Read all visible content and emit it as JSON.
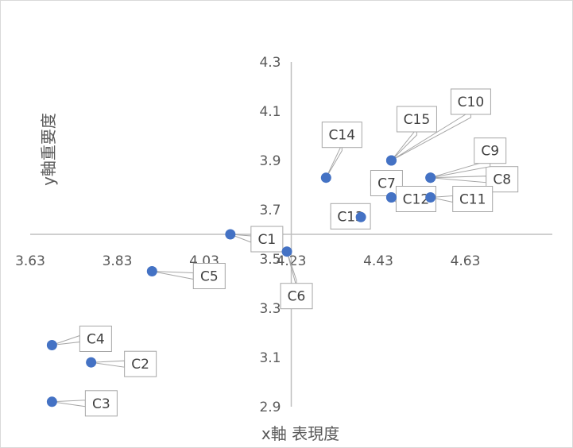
{
  "chart_data": {
    "type": "scatter",
    "title": "",
    "xlabel": "x軸 表現度",
    "ylabel": "y軸重要度",
    "xlim": [
      3.63,
      4.83
    ],
    "ylim": [
      2.9,
      4.3
    ],
    "axis_cross": {
      "x": 4.23,
      "y": 3.6
    },
    "x_ticks": [
      "3.63",
      "3.83",
      "4.03",
      "4.23",
      "4.43",
      "4.63"
    ],
    "y_ticks": [
      "2.9",
      "3.1",
      "3.3",
      "3.5",
      "3.7",
      "3.9",
      "4.1",
      "4.3"
    ],
    "grid": false,
    "legend": "none",
    "marker_color": "#4472C4",
    "points": [
      {
        "label": "C1",
        "x": 4.09,
        "y": 3.6
      },
      {
        "label": "C2",
        "x": 3.77,
        "y": 3.08
      },
      {
        "label": "C3",
        "x": 3.68,
        "y": 2.92
      },
      {
        "label": "C4",
        "x": 3.68,
        "y": 3.15
      },
      {
        "label": "C5",
        "x": 3.91,
        "y": 3.45
      },
      {
        "label": "C6",
        "x": 4.22,
        "y": 3.53
      },
      {
        "label": "C7",
        "x": 4.46,
        "y": 3.75
      },
      {
        "label": "C8",
        "x": 4.55,
        "y": 3.83
      },
      {
        "label": "C9",
        "x": 4.55,
        "y": 3.83
      },
      {
        "label": "C10",
        "x": 4.46,
        "y": 3.9
      },
      {
        "label": "C11",
        "x": 4.55,
        "y": 3.75
      },
      {
        "label": "C12",
        "x": 4.46,
        "y": 3.75
      },
      {
        "label": "C13",
        "x": 4.39,
        "y": 3.67
      },
      {
        "label": "C14",
        "x": 4.31,
        "y": 3.83
      },
      {
        "label": "C15",
        "x": 4.46,
        "y": 3.9
      }
    ]
  }
}
